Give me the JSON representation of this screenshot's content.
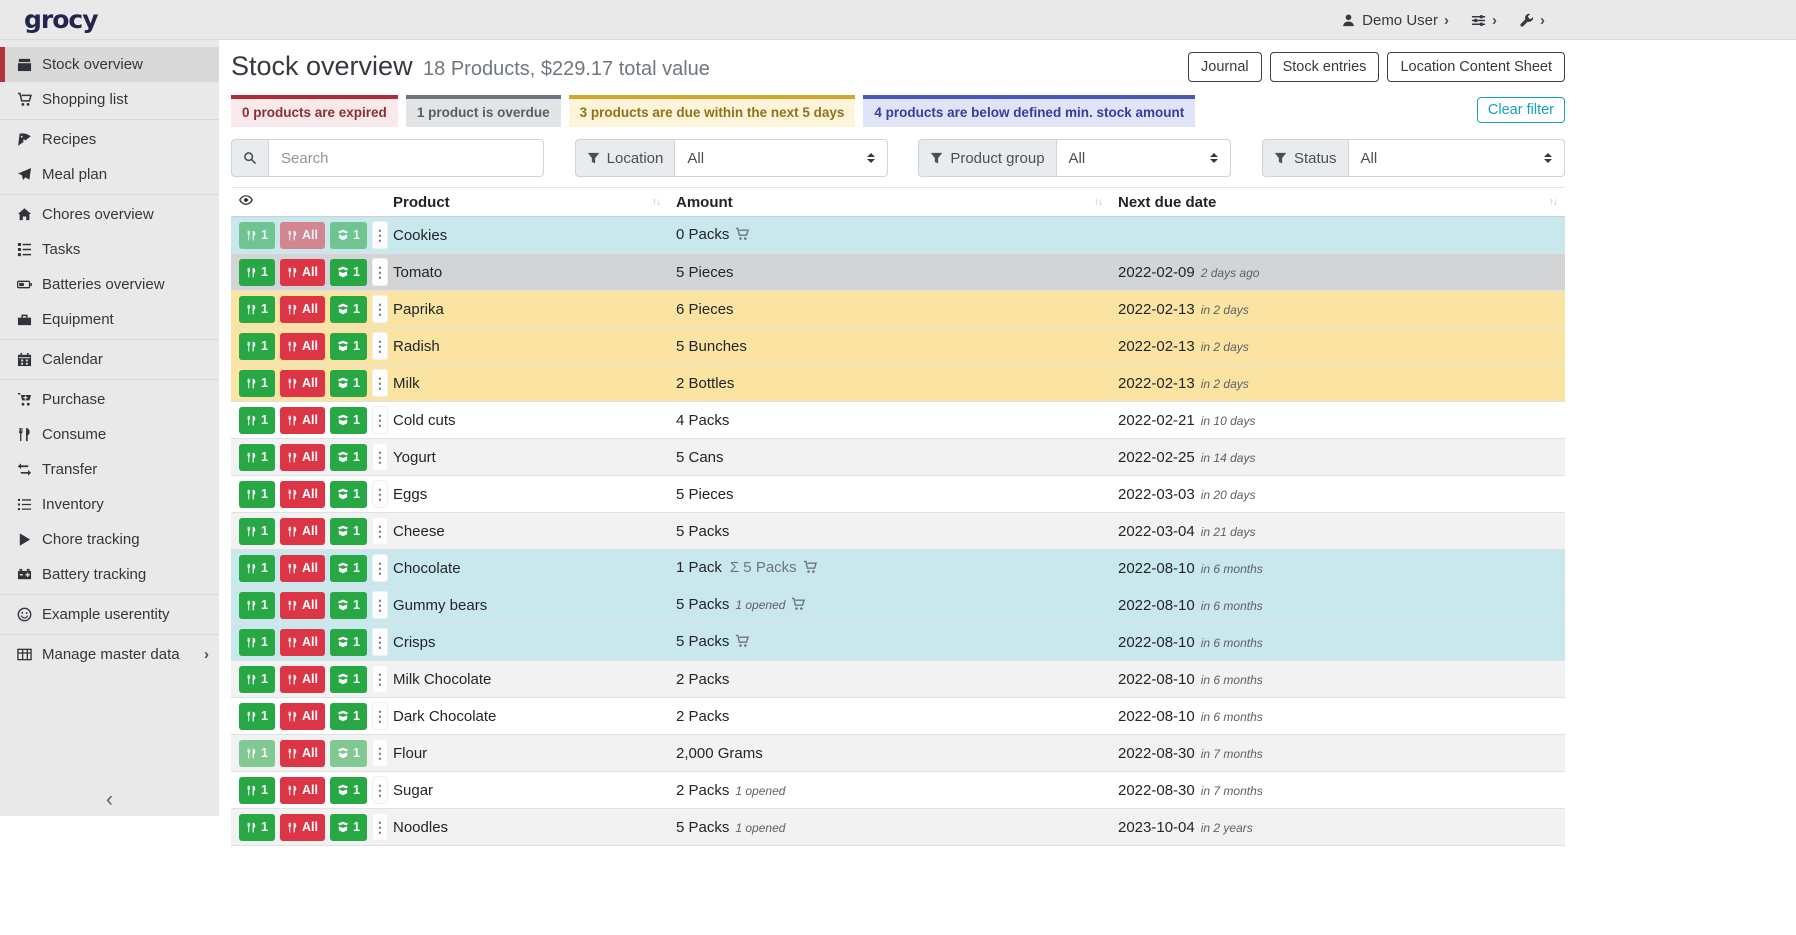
{
  "topbar": {
    "logo": "grocy",
    "user": "Demo User"
  },
  "sidebar": {
    "items": [
      {
        "label": "Stock overview",
        "icon": "boxes",
        "active": true
      },
      {
        "label": "Shopping list",
        "icon": "cart"
      },
      {
        "label": "Recipes",
        "icon": "pizza",
        "divider_before": true
      },
      {
        "label": "Meal plan",
        "icon": "paper-plane"
      },
      {
        "label": "Chores overview",
        "icon": "house",
        "divider_before": true
      },
      {
        "label": "Tasks",
        "icon": "tasks"
      },
      {
        "label": "Batteries overview",
        "icon": "battery"
      },
      {
        "label": "Equipment",
        "icon": "toolbox"
      },
      {
        "label": "Calendar",
        "icon": "calendar",
        "divider_before": true
      },
      {
        "label": "Purchase",
        "icon": "cart-plus",
        "divider_before": true
      },
      {
        "label": "Consume",
        "icon": "utensils"
      },
      {
        "label": "Transfer",
        "icon": "exchange"
      },
      {
        "label": "Inventory",
        "icon": "list"
      },
      {
        "label": "Chore tracking",
        "icon": "play"
      },
      {
        "label": "Battery tracking",
        "icon": "car-battery"
      },
      {
        "label": "Example userentity",
        "icon": "smiley",
        "divider_before": true
      },
      {
        "label": "Manage master data",
        "icon": "table",
        "divider_before": true,
        "chevron": true
      }
    ]
  },
  "page": {
    "title": "Stock overview",
    "subtitle": "18 Products, $229.17 total value",
    "actions": [
      "Journal",
      "Stock entries",
      "Location Content Sheet"
    ]
  },
  "status_chips": [
    {
      "label": "0 products are expired",
      "type": "expired"
    },
    {
      "label": "1 product is overdue",
      "type": "overdue"
    },
    {
      "label": "3 products are due within the next 5 days",
      "type": "duesoon"
    },
    {
      "label": "4 products are below defined min. stock amount",
      "type": "belowmin"
    }
  ],
  "clear_filter_label": "Clear filter",
  "filters": {
    "search_placeholder": "Search",
    "groups": [
      {
        "label": "Location",
        "value": "All"
      },
      {
        "label": "Product group",
        "value": "All"
      },
      {
        "label": "Status",
        "value": "All"
      }
    ]
  },
  "table": {
    "columns": [
      "Product",
      "Amount",
      "Next due date"
    ],
    "row_buttons": {
      "consume_one": "1",
      "consume_all": "All",
      "open_one": "1"
    },
    "rows": [
      {
        "product": "Cookies",
        "amount": "0 Packs",
        "cart": true,
        "date": "",
        "relative": "",
        "status": "belowmin",
        "disabled": [
          "consume_one",
          "consume_all",
          "open_one"
        ]
      },
      {
        "product": "Tomato",
        "amount": "5 Pieces",
        "date": "2022-02-09",
        "relative": "2 days ago",
        "status": "overdue"
      },
      {
        "product": "Paprika",
        "amount": "6 Pieces",
        "date": "2022-02-13",
        "relative": "in 2 days",
        "status": "duesoon"
      },
      {
        "product": "Radish",
        "amount": "5 Bunches",
        "date": "2022-02-13",
        "relative": "in 2 days",
        "status": "duesoon"
      },
      {
        "product": "Milk",
        "amount": "2 Bottles",
        "date": "2022-02-13",
        "relative": "in 2 days",
        "status": "duesoon"
      },
      {
        "product": "Cold cuts",
        "amount": "4 Packs",
        "date": "2022-02-21",
        "relative": "in 10 days"
      },
      {
        "product": "Yogurt",
        "amount": "5 Cans",
        "date": "2022-02-25",
        "relative": "in 14 days"
      },
      {
        "product": "Eggs",
        "amount": "5 Pieces",
        "date": "2022-03-03",
        "relative": "in 20 days"
      },
      {
        "product": "Cheese",
        "amount": "5 Packs",
        "date": "2022-03-04",
        "relative": "in 21 days"
      },
      {
        "product": "Chocolate",
        "amount": "1 Pack",
        "aggregated": "5 Packs",
        "cart": true,
        "date": "2022-08-10",
        "relative": "in 6 months",
        "status": "belowmin"
      },
      {
        "product": "Gummy bears",
        "amount": "5 Packs",
        "opened": "1 opened",
        "cart": true,
        "date": "2022-08-10",
        "relative": "in 6 months",
        "status": "belowmin"
      },
      {
        "product": "Crisps",
        "amount": "5 Packs",
        "cart": true,
        "date": "2022-08-10",
        "relative": "in 6 months",
        "status": "belowmin"
      },
      {
        "product": "Milk Chocolate",
        "amount": "2 Packs",
        "date": "2022-08-10",
        "relative": "in 6 months"
      },
      {
        "product": "Dark Chocolate",
        "amount": "2 Packs",
        "date": "2022-08-10",
        "relative": "in 6 months"
      },
      {
        "product": "Flour",
        "amount": "2,000 Grams",
        "date": "2022-08-30",
        "relative": "in 7 months",
        "disabled": [
          "consume_one",
          "open_one"
        ]
      },
      {
        "product": "Sugar",
        "amount": "2 Packs",
        "opened": "1 opened",
        "date": "2022-08-30",
        "relative": "in 7 months"
      },
      {
        "product": "Noodles",
        "amount": "5 Packs",
        "opened": "1 opened",
        "date": "2023-10-04",
        "relative": "in 2 years"
      }
    ]
  },
  "colors": {
    "green": "#28a745",
    "red": "#dc3545",
    "teal": "#17a2b8",
    "logo": "#23254d",
    "sidebar_marker": "#b0353c",
    "row_below_min": "#c9e8ee",
    "row_overdue": "#d3d4d6",
    "row_due_soon": "#fbe4a2",
    "row_stripe": "#f2f2f2",
    "chip_expired_border": "#b02a37",
    "chip_expired_bg": "#fae9eb",
    "chip_expired_text": "#8b2e38",
    "chip_overdue_border": "#6c757d",
    "chip_overdue_bg": "#e3e4e6",
    "chip_overdue_text": "#575e64",
    "chip_due_soon_border": "#d4a72c",
    "chip_due_soon_bg": "#fdf4d9",
    "chip_due_soon_text": "#8f721c",
    "chip_below_min_border": "#4a58b9",
    "chip_below_min_bg": "#e1e4f6",
    "chip_below_min_text": "#333f9e"
  }
}
